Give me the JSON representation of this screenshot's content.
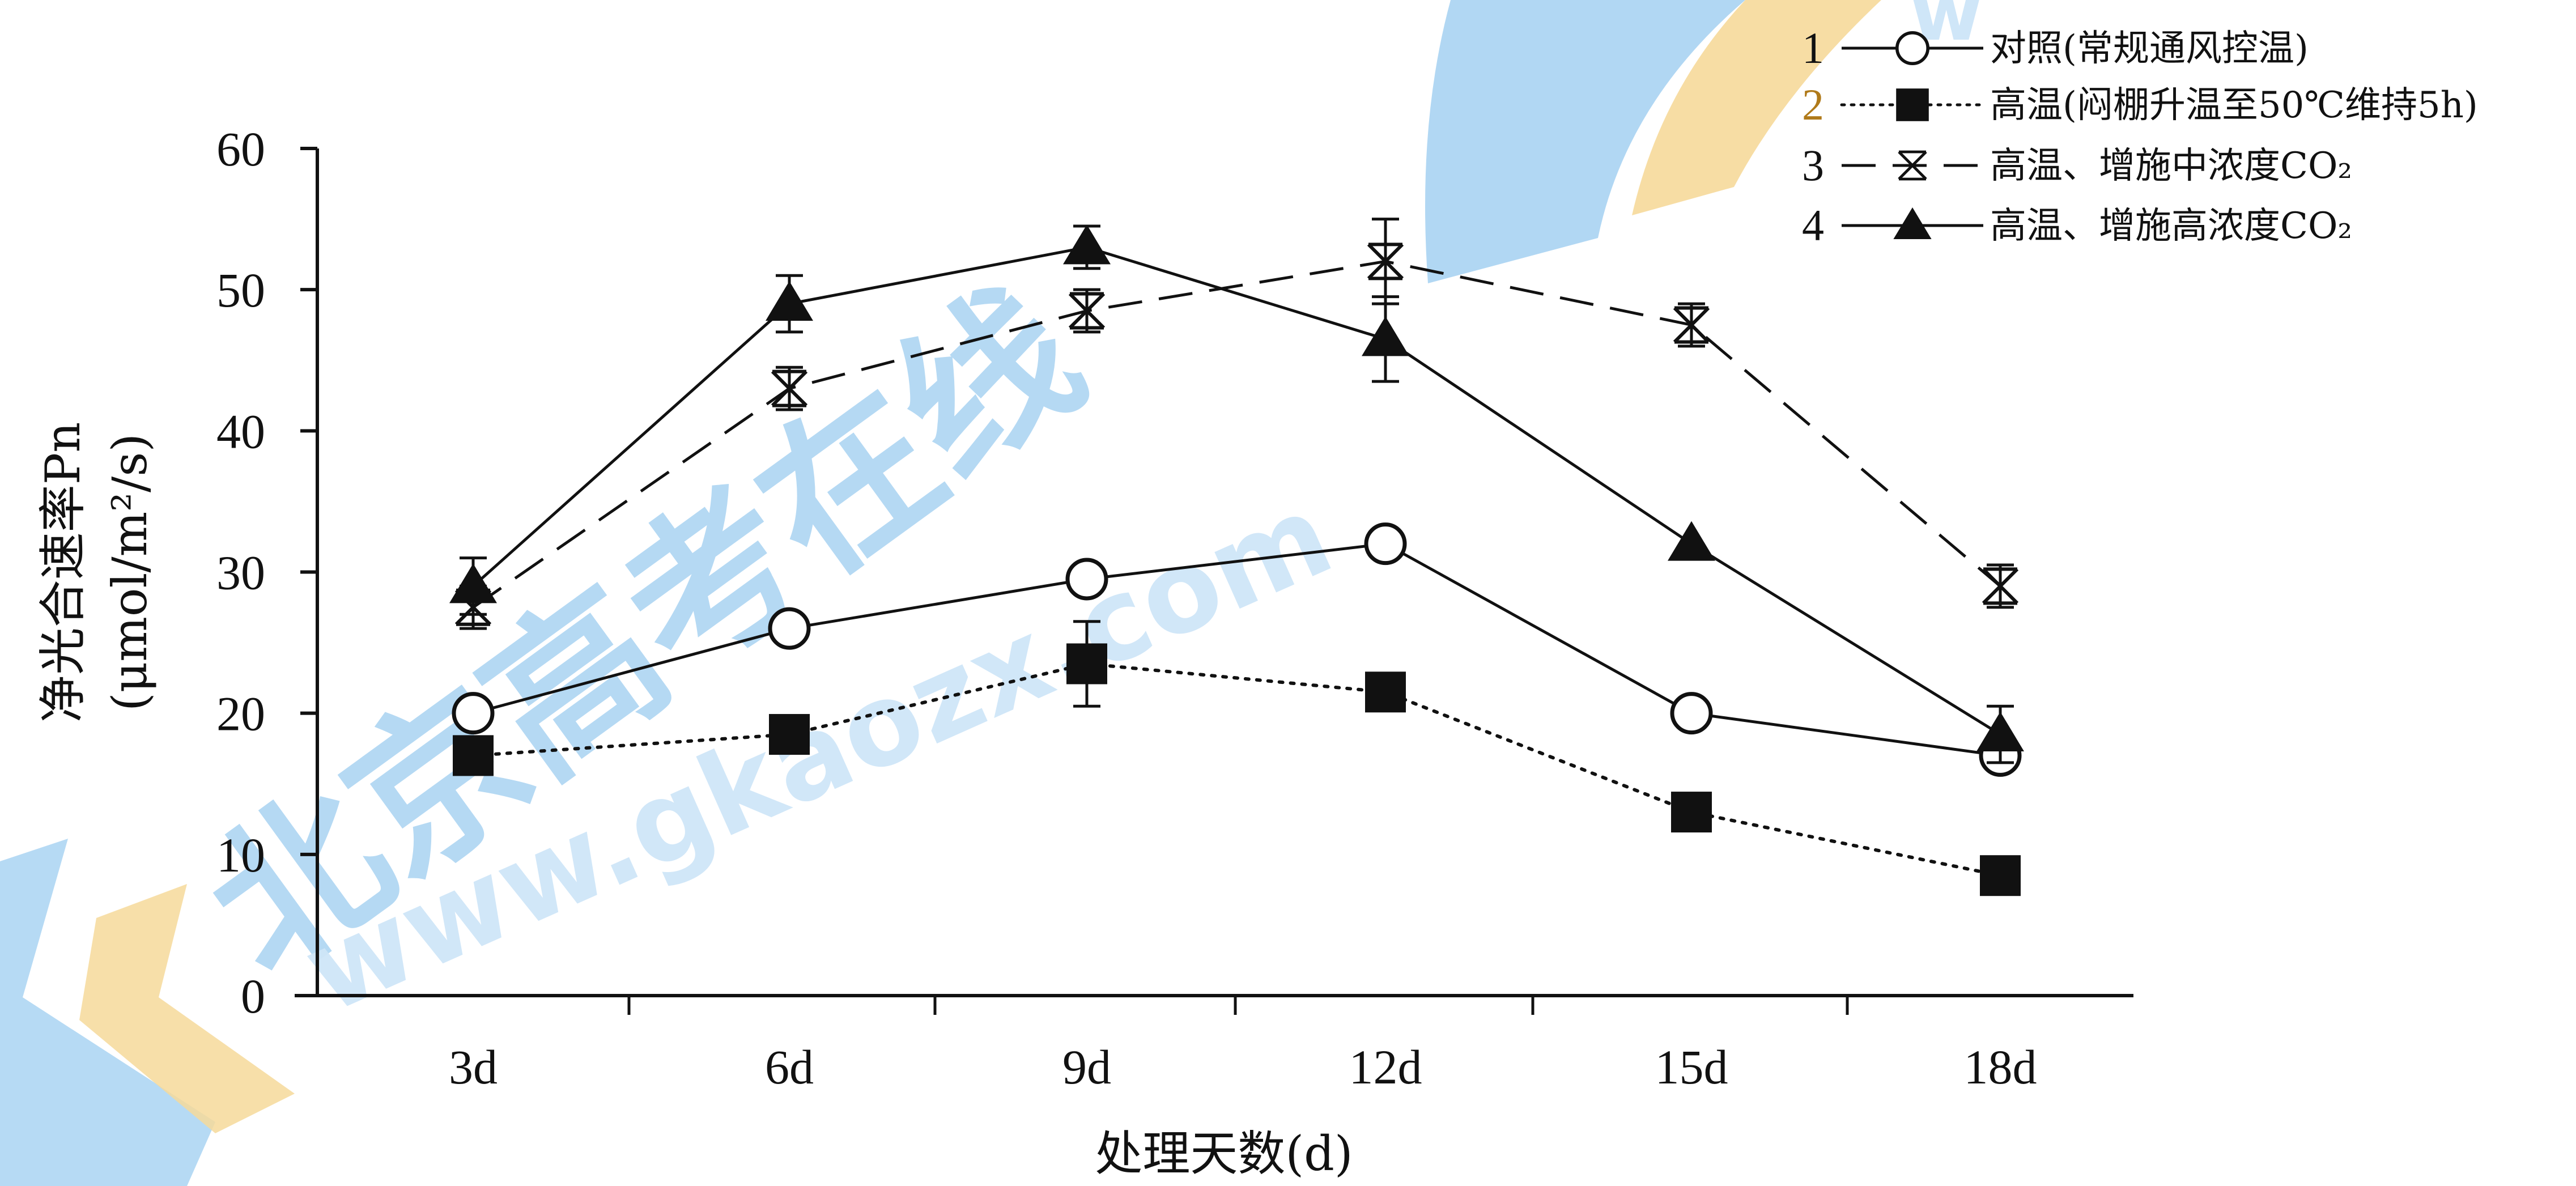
{
  "colors": {
    "ink": "#111111",
    "watermark_blue": "#a9d3f2",
    "watermark_blue_light": "#cfe6f8",
    "watermark_orange": "#f6d99a",
    "legend_num2": "#b07a1a"
  },
  "watermark": {
    "brand": "北京高考在线",
    "url": "www.gkaozx.com",
    "logo_letter": "w"
  },
  "chart_data": {
    "type": "line",
    "xlabel": "处理天数(d)",
    "ylabel_line1": "净光合速率Pn",
    "ylabel_line2": "(μmol/m²/s)",
    "categories": [
      "3d",
      "6d",
      "9d",
      "12d",
      "15d",
      "18d"
    ],
    "ylim": [
      0,
      60
    ],
    "yticks": [
      0,
      10,
      20,
      30,
      40,
      50,
      60
    ],
    "grid": false,
    "legend_placement": "top-right",
    "series": [
      {
        "id": "1",
        "name": "对照(常规通风控温)",
        "marker": "open-circle",
        "line": "solid",
        "values": [
          20,
          26,
          29.5,
          32,
          20,
          17
        ]
      },
      {
        "id": "2",
        "name": "高温(闷棚升温至50℃维持5h)",
        "marker": "filled-square",
        "line": "dotted",
        "values": [
          17,
          18.5,
          23.5,
          21.5,
          13,
          8.5
        ],
        "error": [
          0,
          0,
          3,
          0,
          0,
          0
        ]
      },
      {
        "id": "3",
        "name": "高温、增施中浓度CO₂",
        "marker": "x-bar",
        "line": "dashed",
        "values": [
          27.5,
          43,
          48.5,
          52,
          47.5,
          29
        ],
        "error": [
          1.5,
          1.5,
          1.5,
          3,
          1.5,
          1.5
        ]
      },
      {
        "id": "4",
        "name": "高温、增施高浓度CO₂",
        "marker": "filled-triangle",
        "line": "solid",
        "values": [
          29,
          49,
          53,
          46.5,
          32,
          18.5
        ],
        "error": [
          2,
          2,
          1.5,
          3,
          0,
          2
        ]
      }
    ]
  }
}
